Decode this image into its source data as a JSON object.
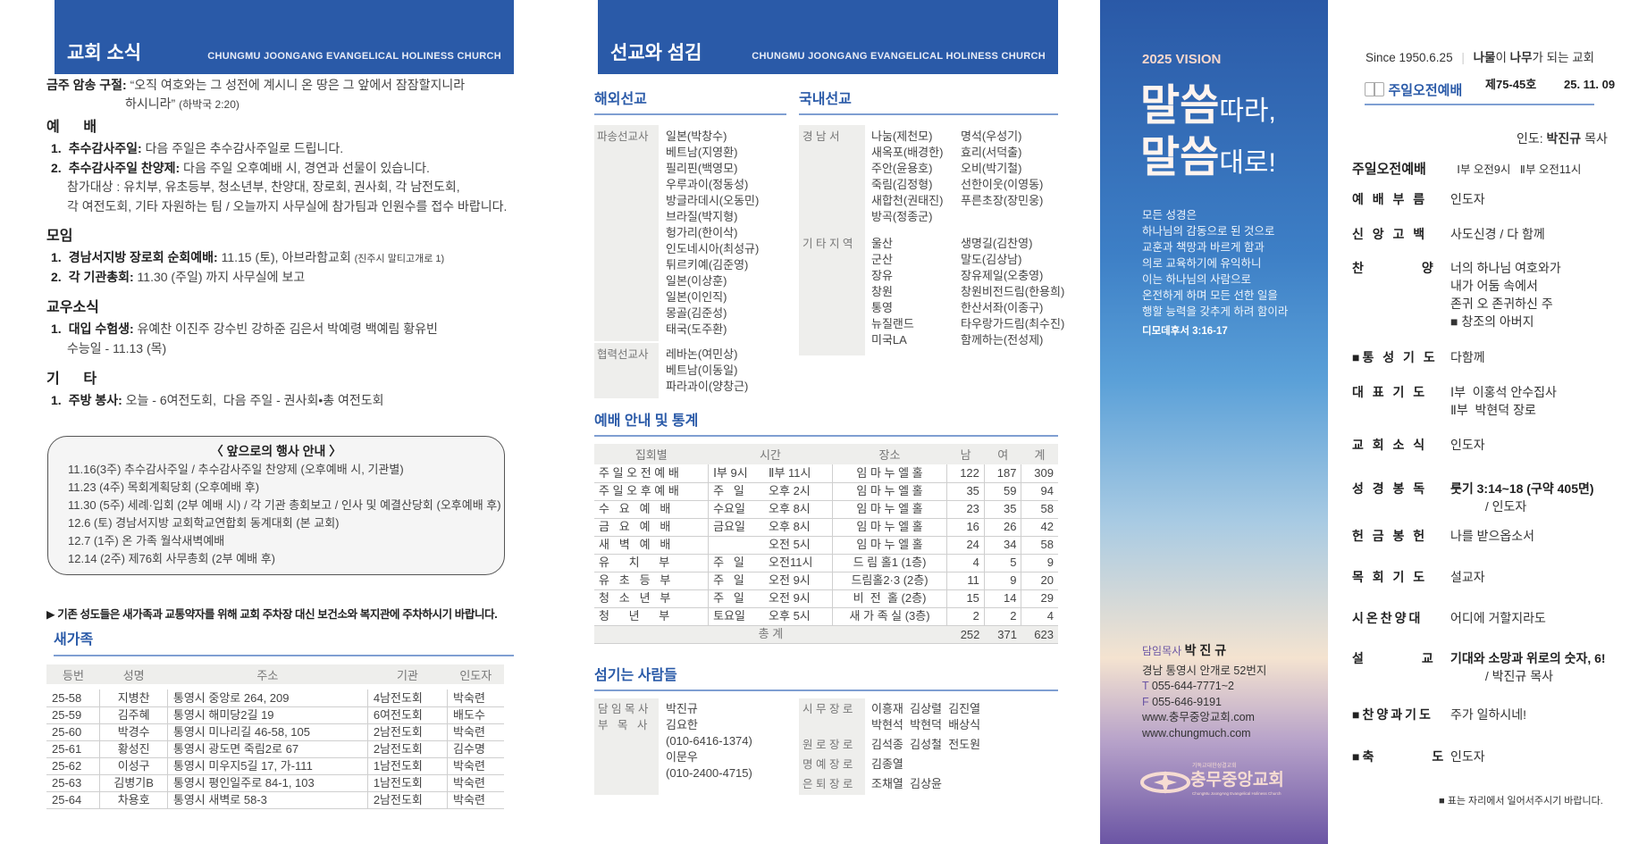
{
  "left": {
    "header_title": "교회 소식",
    "header_subtitle": "CHUNGMU JOONGANG EVANGELICAL HOLINESS CHURCH",
    "verse_label": "금주 암송 구절:",
    "verse_line1": "“오직 여호와는 그 성전에 계시니 온 땅은 그 앞에서 잠잠할지니라",
    "verse_line2": "하시니라”",
    "verse_ref": "(하박국 2:20)",
    "sections": [
      {
        "title": "예      배",
        "lines": [
          {
            "num": "1.",
            "bold": "추수감사주일:",
            "text": " 다음 주일은 추수감사주일로 드립니다.",
            "small": ""
          },
          {
            "num": "2.",
            "bold": "추수감사주일 찬양제:",
            "text": " 다음 주일 오후예배 시, 경연과 선물이 있습니다.",
            "small": ""
          },
          {
            "num": "",
            "bold": "",
            "text": "참가대상 : 유치부, 유초등부, 청소년부, 찬양대, 장로회, 권사회, 각 남전도회,",
            "small": ""
          },
          {
            "num": "",
            "bold": "",
            "text": "각 여전도회, 기타 자원하는 팀 / 오늘까지 사무실에 참가팀과 인원수를 접수 바랍니다.",
            "small": ""
          }
        ]
      },
      {
        "title": "모임",
        "lines": [
          {
            "num": "1.",
            "bold": "경남서지방 장로회 순회예배:",
            "text": " 11.15 (토), 아브라함교회 ",
            "small": "(진주시 말티고개로 1)"
          },
          {
            "num": "2.",
            "bold": "각 기관총회:",
            "text": " 11.30 (주일) 까지 사무실에 보고",
            "small": ""
          }
        ]
      },
      {
        "title": "교우소식",
        "lines": [
          {
            "num": "1.",
            "bold": "대입 수험생:",
            "text": " 유예찬 이진주 강수빈 강하준 김은서 박예령 백예림 황유빈",
            "small": ""
          },
          {
            "num": "",
            "bold": "",
            "text": "수능일 - 11.13 (목)",
            "small": ""
          }
        ]
      },
      {
        "title": "기      타",
        "lines": [
          {
            "num": "1.",
            "bold": "주방 봉사:",
            "text": " 오늘 - 6여전도회,  다음 주일 - 권사회•총 여전도회",
            "small": ""
          }
        ]
      }
    ],
    "events": {
      "title": "〈 앞으로의 행사 안내 〉",
      "items": [
        "11.16(3주) 추수감사주일 / 추수감사주일 찬양제 (오후예배 시, 기관별)",
        "11.23 (4주) 목회계획당회 (오후예배 후)",
        "11.30 (5주) 세례·입회 (2부 예배 시) / 각 기관 총회보고 / 인사 및 예결산당회 (오후예배 후)",
        "12.6 (토) 경남서지방 교회학교연합회 동계대회 (본 교회)",
        "12.7 (1주) 온 가족 월삭새벽예배",
        "12.14 (2주) 제76회 사무총회 (2부 예배 후)"
      ]
    },
    "parking_notice": "▶ 기존 성도들은 새가족과 교통약자를 위해 교회 주차장 대신 보건소와 복지관에 주차하시기 바랍니다.",
    "new_family": {
      "title": "새가족",
      "headers": [
        "등번",
        "성명",
        "주소",
        "기관",
        "인도자"
      ],
      "rows": [
        [
          "25-58",
          "지병찬",
          "통영시 중앙로 264, 209",
          "4남전도회",
          "박숙련"
        ],
        [
          "25-59",
          "김주혜",
          "통영시 해미당2길 19",
          "6여전도회",
          "배도수"
        ],
        [
          "25-60",
          "박경수",
          "통영시 미나리길 46-58, 105",
          "2남전도회",
          "박숙련"
        ],
        [
          "25-61",
          "황성진",
          "통영시 광도면 죽림2로 67",
          "2남전도회",
          "김수명"
        ],
        [
          "25-62",
          "이성구",
          "통영시 미우지5길 17, 가-111",
          "1남전도회",
          "박숙련"
        ],
        [
          "25-63",
          "김병기B",
          "통영시 평인일주로 84-1, 103",
          "1남전도회",
          "박숙련"
        ],
        [
          "25-64",
          "차용호",
          "통영시 새벽로 58-3",
          "2남전도회",
          "박숙련"
        ]
      ]
    }
  },
  "middle": {
    "header_title": "선교와 섬김",
    "header_subtitle": "CHUNGMU JOONGANG EVANGELICAL HOLINESS CHURCH",
    "overseas": {
      "title": "해외선교",
      "groups": [
        {
          "label": "파송선교사",
          "items": [
            "일본(박창수)",
            "베트남(지영환)",
            "필리핀(백영모)",
            "우루과이(정동성)",
            "방글라데시(오동민)",
            "브라질(박지형)",
            "헝가리(한이삭)",
            "인도네시아(최성규)",
            "튀르키예(김준영)",
            "일본(이상훈)",
            "일본(이인직)",
            "몽골(김준성)",
            "태국(도주환)"
          ]
        },
        {
          "label": "협력선교사",
          "items": [
            "레바논(여민상)",
            "베트남(이동일)",
            "파라과이(양창근)"
          ]
        }
      ]
    },
    "domestic": {
      "title": "국내선교",
      "groups": [
        {
          "label": "경 남 서",
          "col1": [
            "나눔(제천모)",
            "새옥포(배경한)",
            "주안(윤용호)",
            "죽림(김정형)",
            "새합천(권태진)",
            "방곡(정종군)"
          ],
          "col2": [
            "명석(우성기)",
            "효리(서덕출)",
            "오비(박기철)",
            "선한이웃(이영동)",
            "푸른초장(장민웅)"
          ]
        },
        {
          "label": "기 타 지 역",
          "col1": [
            "울산",
            "군산",
            "장유",
            "창원",
            "통영",
            "뉴질랜드",
            "미국LA"
          ],
          "col2": [
            "생명길(김찬영)",
            "말도(김상남)",
            "장유제일(오충영)",
            "창원비전드림(한용희)",
            "한산서좌(이종구)",
            "타우랑가드림(최수진)",
            "함께하는(전성제)"
          ]
        }
      ]
    },
    "stats": {
      "title": "예배 안내 및 통계",
      "headers": [
        "집회별",
        "시간",
        "장소",
        "남",
        "여",
        "계"
      ],
      "rows": [
        [
          "주 일 오 전 예 배",
          "Ⅰ부 9시",
          "Ⅱ부 11시",
          "임 마 누 엘 홀",
          "122",
          "187",
          "309"
        ],
        [
          "주 일 오 후 예 배",
          "주   일",
          "오후 2시",
          "임 마 누 엘 홀",
          "35",
          "59",
          "94"
        ],
        [
          "수   요   예   배",
          "수요일",
          "오후 8시",
          "임 마 누 엘 홀",
          "23",
          "35",
          "58"
        ],
        [
          "금   요   예   배",
          "금요일",
          "오후 8시",
          "임 마 누 엘 홀",
          "16",
          "26",
          "42"
        ],
        [
          "새   벽   예   배",
          "",
          "오전 5시",
          "임 마 누 엘 홀",
          "24",
          "34",
          "58"
        ],
        [
          "유      치      부",
          "주   일",
          "오전11시",
          "드 림 홀1 (1층)",
          "4",
          "5",
          "9"
        ],
        [
          "유   초   등   부",
          "주   일",
          "오전 9시",
          "드림홀2·3 (2층)",
          "11",
          "9",
          "20"
        ],
        [
          "청   소   년   부",
          "주   일",
          "오전 9시",
          "비  전  홀 (2층)",
          "15",
          "14",
          "29"
        ],
        [
          "청      년      부",
          "토요일",
          "오후 5시",
          "새 가 족 실 (3층)",
          "2",
          "2",
          "4"
        ]
      ],
      "total_label": "총  계",
      "total": [
        "252",
        "371",
        "623"
      ]
    },
    "servants": {
      "title": "섬기는 사람들",
      "left": [
        {
          "label": "담 임 목 사",
          "lines": [
            "박진규"
          ]
        },
        {
          "label": "부   목   사",
          "lines": [
            "김요한",
            "(010-6416-1374)",
            "이문우",
            "(010-2400-4715)"
          ]
        }
      ],
      "right": [
        {
          "label": "시 무 장 로",
          "lines": [
            "이흥재  김상렬  김진열",
            "박현석  박현덕  배상식"
          ]
        },
        {
          "label": "원 로 장 로",
          "lines": [
            "김석종  김성철  전도원"
          ]
        },
        {
          "label": "명 예 장 로",
          "lines": [
            "김종열"
          ]
        },
        {
          "label": "은 퇴 장 로",
          "lines": [
            "조채열  김상윤"
          ]
        }
      ]
    }
  },
  "vision": {
    "year": "2025 VISION",
    "big1": "말씀",
    "small1": "따라,",
    "big2": "말씀",
    "small2": "대로!",
    "verse": [
      "모든 성경은",
      "하나님의 감동으로 된 것으로",
      "교훈과 책망과 바르게 함과",
      "의로 교육하기에 유익하니",
      "이는 하나님의 사람으로",
      "온전하게 하며 모든 선한 일을",
      "행할 능력을 갖추게 하려 함이라"
    ],
    "ref": "디모데후서 3:16-17",
    "pastor_label": "담임목사",
    "pastor_name": "박 진 규",
    "address": "경남 통영시 안개로 52번지",
    "tel_label": "T",
    "tel": "055-644-7771~2",
    "fax_label": "F",
    "fax": "055-646-9191",
    "web1": "www.충무중앙교회.com",
    "web2": "www.chungmuch.com",
    "logo_top": "기독교대한성결교회",
    "logo_name": "충무중앙교회",
    "logo_sub": "ChungMu JoongAng Evangelical Holiness Church",
    "colors": {
      "top": "#2a59a7",
      "bottom": "#6b55a4"
    }
  },
  "right": {
    "since": "Since 1950.6.25",
    "motto_b1": "나물",
    "motto_t1": "이 ",
    "motto_b2": "나무",
    "motto_t2": "가 되는 교회",
    "service_title": "주일오전예배",
    "issue": "제75-45호",
    "date": "25. 11. 09",
    "leader_label": "인도:",
    "leader_name": "박진규",
    "leader_title": "목사",
    "order_title": "주일오전예배",
    "order_times": "Ⅰ부 오전9시   Ⅱ부 오전11시",
    "order": [
      {
        "key": "예 배 부 름",
        "lines": [
          "인도자"
        ]
      },
      {
        "key": "신 앙 고 백",
        "lines": [
          "사도신경 / 다 함께"
        ]
      },
      {
        "key": "찬         양",
        "lines": [
          "너의 하나님 여호와가",
          "내가 어둠 속에서",
          "존귀 오 존귀하신 주",
          "■ 창조의 아버지"
        ]
      },
      {
        "key": "■통 성 기 도",
        "lines": [
          "다함께"
        ]
      },
      {
        "key": "대 표 기 도",
        "lines": [
          "Ⅰ부  이홍석 안수집사",
          "Ⅱ부  박현덕 장로"
        ]
      },
      {
        "key": "교 회 소 식",
        "lines": [
          "인도자"
        ]
      },
      {
        "key": "성 경 봉 독",
        "lines": [
          "룻기 3:14~18 (구약 405면)",
          "          / 인도자"
        ]
      },
      {
        "key": "헌 금 봉 헌",
        "lines": [
          "나를 받으옵소서"
        ]
      },
      {
        "key": "목 회 기 도",
        "lines": [
          "설교자"
        ]
      },
      {
        "key": "시온찬양대",
        "lines": [
          "어디에 거할지라도"
        ]
      },
      {
        "key": "설         교",
        "lines": [
          "기대와 소망과 위로의 숫자, 6!",
          "          / 박진규 목사"
        ]
      },
      {
        "key": "■찬양과기도",
        "lines": [
          "주가 일하시네!"
        ]
      },
      {
        "key": "■축         도",
        "lines": [
          "인도자"
        ]
      }
    ],
    "footnote": "■ 표는 자리에서 일어서주시기 바랍니다."
  }
}
